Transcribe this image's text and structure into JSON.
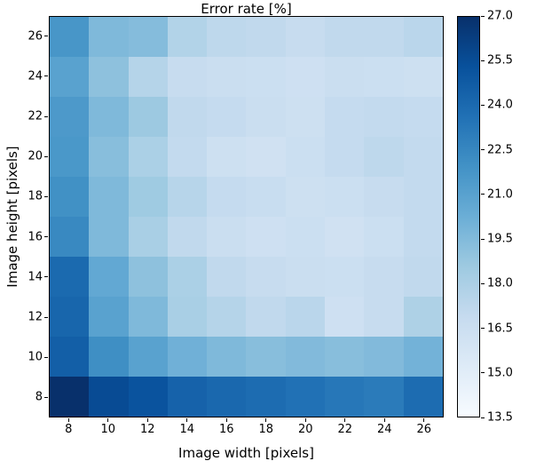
{
  "figure": {
    "background": "#ffffff",
    "axis_color": "#000000"
  },
  "chart_data": {
    "type": "heatmap",
    "title": "Error rate [%]",
    "xlabel": "Image width [pixels]",
    "ylabel": "Image height [pixels]",
    "x_categories": [
      8,
      10,
      12,
      14,
      16,
      18,
      20,
      22,
      24,
      26
    ],
    "y_categories": [
      8,
      10,
      12,
      14,
      16,
      18,
      20,
      22,
      24,
      26
    ],
    "values_row_order": "bottom-to-top (row 0 = image height 8)",
    "values": [
      [
        27.0,
        25.6,
        25.2,
        24.4,
        24.1,
        23.9,
        23.6,
        23.3,
        23.1,
        23.9
      ],
      [
        24.6,
        22.1,
        21.0,
        20.1,
        19.6,
        19.3,
        19.5,
        19.3,
        19.5,
        20.0
      ],
      [
        24.2,
        21.0,
        19.6,
        18.1,
        17.6,
        17.1,
        17.4,
        16.3,
        16.8,
        17.9
      ],
      [
        24.0,
        20.6,
        19.1,
        18.0,
        17.1,
        16.8,
        16.6,
        16.5,
        16.8,
        17.1
      ],
      [
        22.4,
        19.6,
        18.1,
        17.1,
        16.6,
        16.3,
        16.5,
        16.2,
        16.5,
        17.0
      ],
      [
        22.0,
        19.6,
        18.5,
        17.5,
        16.9,
        16.7,
        16.4,
        16.5,
        16.8,
        17.0
      ],
      [
        21.6,
        19.3,
        18.0,
        17.0,
        16.4,
        16.2,
        16.5,
        16.9,
        17.2,
        17.0
      ],
      [
        21.5,
        19.6,
        18.6,
        17.1,
        16.9,
        16.6,
        16.4,
        16.9,
        17.0,
        16.9
      ],
      [
        21.0,
        19.1,
        17.6,
        16.8,
        16.6,
        16.5,
        16.3,
        16.6,
        16.5,
        16.4
      ],
      [
        21.7,
        19.6,
        19.4,
        17.7,
        17.2,
        17.1,
        16.8,
        17.1,
        17.1,
        17.4
      ]
    ],
    "vmin": 13.5,
    "vmax": 27.0,
    "colorbar_ticks": [
      13.5,
      15.0,
      16.5,
      18.0,
      19.5,
      21.0,
      22.5,
      24.0,
      25.5,
      27.0
    ],
    "colormap": "Blues",
    "colormap_anchors": [
      [
        0.0,
        "#f7fbff"
      ],
      [
        0.125,
        "#deebf7"
      ],
      [
        0.25,
        "#c6dbef"
      ],
      [
        0.375,
        "#9ecae1"
      ],
      [
        0.5,
        "#6baed6"
      ],
      [
        0.625,
        "#4292c6"
      ],
      [
        0.75,
        "#2171b5"
      ],
      [
        0.875,
        "#08519c"
      ],
      [
        1.0,
        "#08306b"
      ]
    ],
    "legend_position": "right colorbar",
    "grid": false
  }
}
